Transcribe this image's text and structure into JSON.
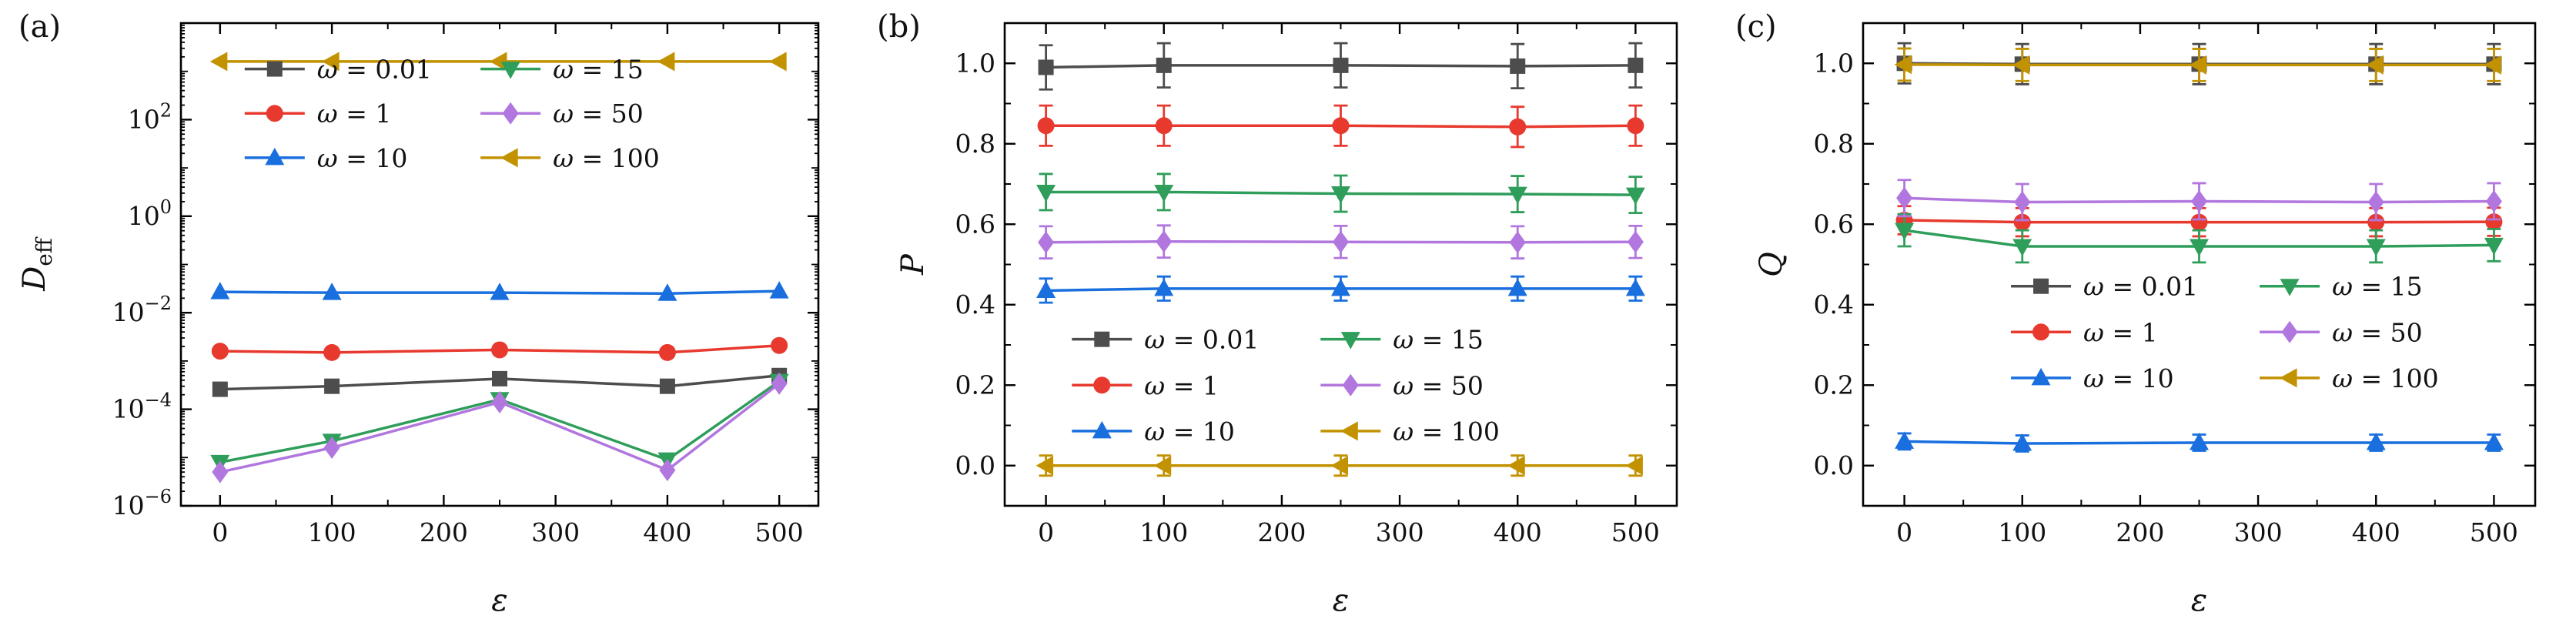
{
  "figure": {
    "description": "Three-panel line chart figure with markers and error bars",
    "panel_count": 3
  },
  "chart_data": [
    {
      "type": "line",
      "panel_label": "(a)",
      "xlabel": "ε",
      "ylabel": "D",
      "ylabel_sub": "eff",
      "yscale": "log",
      "xlim": [
        -35,
        535
      ],
      "ylim": [
        1e-06,
        10000.0
      ],
      "xticks": [
        0,
        100,
        200,
        300,
        400,
        500
      ],
      "xminor": [
        50,
        150,
        250,
        350,
        450
      ],
      "yticks": [
        {
          "v": 1e-06,
          "exp": "-6"
        },
        {
          "v": 0.0001,
          "exp": "-4"
        },
        {
          "v": 0.01,
          "exp": "-2"
        },
        {
          "v": 1,
          "exp": "0"
        },
        {
          "v": 100,
          "exp": "2"
        }
      ],
      "x": [
        0,
        100,
        250,
        400,
        500
      ],
      "series": [
        {
          "name": "ω = 0.01",
          "marker": "square",
          "color": "#4d4d4d",
          "values": [
            0.00026,
            0.0003,
            0.00043,
            0.0003,
            0.0005
          ]
        },
        {
          "name": "ω = 1",
          "marker": "circle",
          "color": "#e8392e",
          "values": [
            0.0016,
            0.0015,
            0.0017,
            0.0015,
            0.0021
          ]
        },
        {
          "name": "ω = 10",
          "marker": "triangle-up",
          "color": "#1a6fdf",
          "values": [
            0.027,
            0.026,
            0.026,
            0.025,
            0.028
          ]
        },
        {
          "name": "ω = 15",
          "marker": "triangle-down",
          "color": "#2f9e5a",
          "values": [
            8e-06,
            2.2e-05,
            0.00016,
            9e-06,
            0.00038
          ]
        },
        {
          "name": "ω = 50",
          "marker": "diamond",
          "color": "#b177de",
          "values": [
            5e-06,
            1.6e-05,
            0.00014,
            5.5e-06,
            0.00034
          ]
        },
        {
          "name": "ω = 100",
          "marker": "triangle-left",
          "color": "#c29200",
          "values": [
            1600.0,
            1600.0,
            1600.0,
            1600.0,
            1600.0
          ]
        }
      ],
      "legend": {
        "position": "upper-left",
        "x": 0.1,
        "y": 0.095,
        "col_dx": 0.37,
        "row_dy": 0.092
      },
      "grid": false,
      "margins": {
        "l": 235,
        "r": 52,
        "t": 30,
        "b": 160
      },
      "ylabel_x": 58
    },
    {
      "type": "line",
      "panel_label": "(b)",
      "xlabel": "ε",
      "ylabel": "P",
      "yscale": "linear",
      "xlim": [
        -35,
        535
      ],
      "ylim": [
        -0.1,
        1.1
      ],
      "xticks": [
        0,
        100,
        200,
        300,
        400,
        500
      ],
      "xminor": [
        50,
        150,
        250,
        350,
        450
      ],
      "yticks": [
        {
          "v": 0,
          "label": "0.0"
        },
        {
          "v": 0.2,
          "label": "0.2"
        },
        {
          "v": 0.4,
          "label": "0.4"
        },
        {
          "v": 0.6,
          "label": "0.6"
        },
        {
          "v": 0.8,
          "label": "0.8"
        },
        {
          "v": 1.0,
          "label": "1.0"
        }
      ],
      "yminor": [
        0.1,
        0.3,
        0.5,
        0.7,
        0.9
      ],
      "x": [
        0,
        100,
        250,
        400,
        500
      ],
      "series": [
        {
          "name": "ω = 0.01",
          "marker": "square",
          "color": "#4d4d4d",
          "yerr": 0.055,
          "values": [
            0.99,
            0.995,
            0.995,
            0.993,
            0.995
          ]
        },
        {
          "name": "ω = 1",
          "marker": "circle",
          "color": "#e8392e",
          "yerr": 0.05,
          "values": [
            0.845,
            0.845,
            0.845,
            0.842,
            0.845
          ]
        },
        {
          "name": "ω = 10",
          "marker": "triangle-up",
          "color": "#1a6fdf",
          "yerr": 0.03,
          "values": [
            0.435,
            0.44,
            0.44,
            0.44,
            0.44
          ]
        },
        {
          "name": "ω = 15",
          "marker": "triangle-down",
          "color": "#2f9e5a",
          "yerr": 0.045,
          "values": [
            0.68,
            0.68,
            0.676,
            0.675,
            0.673
          ]
        },
        {
          "name": "ω = 50",
          "marker": "diamond",
          "color": "#b177de",
          "yerr": 0.04,
          "values": [
            0.555,
            0.557,
            0.556,
            0.555,
            0.556
          ]
        },
        {
          "name": "ω = 100",
          "marker": "triangle-left",
          "color": "#c29200",
          "yerr": 0.025,
          "values": [
            0.0,
            0.0,
            0.0,
            0.0,
            0.0
          ]
        }
      ],
      "legend": {
        "position": "lower-left",
        "x": 0.1,
        "y": 0.655,
        "col_dx": 0.37,
        "row_dy": 0.095
      },
      "grid": false,
      "margins": {
        "l": 190,
        "r": 52,
        "t": 30,
        "b": 160
      },
      "ylabel_x": 84
    },
    {
      "type": "line",
      "panel_label": "(c)",
      "xlabel": "ε",
      "ylabel": "Q",
      "yscale": "linear",
      "xlim": [
        -35,
        535
      ],
      "ylim": [
        -0.1,
        1.1
      ],
      "xticks": [
        0,
        100,
        200,
        300,
        400,
        500
      ],
      "xminor": [
        50,
        150,
        250,
        350,
        450
      ],
      "yticks": [
        {
          "v": 0,
          "label": "0.0"
        },
        {
          "v": 0.2,
          "label": "0.2"
        },
        {
          "v": 0.4,
          "label": "0.4"
        },
        {
          "v": 0.6,
          "label": "0.6"
        },
        {
          "v": 0.8,
          "label": "0.8"
        },
        {
          "v": 1.0,
          "label": "1.0"
        }
      ],
      "yminor": [
        0.1,
        0.3,
        0.5,
        0.7,
        0.9
      ],
      "x": [
        0,
        100,
        250,
        400,
        500
      ],
      "series": [
        {
          "name": "ω = 0.01",
          "marker": "square",
          "color": "#4d4d4d",
          "yerr": 0.05,
          "values": [
            1.0,
            0.998,
            0.998,
            0.998,
            0.998
          ]
        },
        {
          "name": "ω = 1",
          "marker": "circle",
          "color": "#e8392e",
          "yerr": 0.035,
          "values": [
            0.61,
            0.605,
            0.605,
            0.605,
            0.606
          ]
        },
        {
          "name": "ω = 10",
          "marker": "triangle-up",
          "color": "#1a6fdf",
          "yerr": 0.02,
          "values": [
            0.06,
            0.055,
            0.057,
            0.057,
            0.057
          ]
        },
        {
          "name": "ω = 15",
          "marker": "triangle-down",
          "color": "#2f9e5a",
          "yerr": 0.04,
          "values": [
            0.585,
            0.545,
            0.545,
            0.545,
            0.548
          ]
        },
        {
          "name": "ω = 50",
          "marker": "diamond",
          "color": "#b177de",
          "yerr": 0.045,
          "values": [
            0.665,
            0.655,
            0.657,
            0.655,
            0.657
          ]
        },
        {
          "name": "ω = 100",
          "marker": "triangle-left",
          "color": "#c29200",
          "yerr": 0.04,
          "values": [
            0.997,
            0.996,
            0.996,
            0.996,
            0.996
          ]
        }
      ],
      "legend": {
        "position": "center-right",
        "x": 0.22,
        "y": 0.545,
        "col_dx": 0.37,
        "row_dy": 0.095
      },
      "grid": false,
      "margins": {
        "l": 190,
        "r": 52,
        "t": 30,
        "b": 160
      },
      "ylabel_x": 84
    }
  ]
}
